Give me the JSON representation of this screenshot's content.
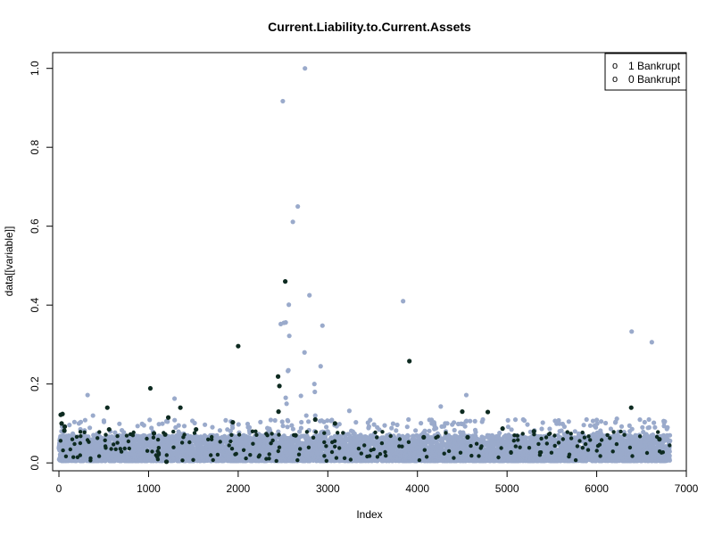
{
  "chart_data": {
    "type": "scatter",
    "title": "Current.Liability.to.Current.Assets",
    "xlabel": "Index",
    "ylabel": "data[[variable]]",
    "xlim": [
      -70,
      7000
    ],
    "ylim": [
      -0.02,
      1.04
    ],
    "x_ticks": [
      0,
      1000,
      2000,
      3000,
      4000,
      5000,
      6000,
      7000
    ],
    "x_tick_labels": [
      "0",
      "1000",
      "2000",
      "3000",
      "4000",
      "5000",
      "6000",
      "7000"
    ],
    "y_ticks": [
      0.0,
      0.2,
      0.4,
      0.6,
      0.8,
      1.0
    ],
    "y_tick_labels": [
      "0.0",
      "0.2",
      "0.4",
      "0.6",
      "0.8",
      "1.0"
    ],
    "legend": {
      "placement": "top-right",
      "entries": [
        {
          "symbol": "o",
          "label": "1 Bankrupt"
        },
        {
          "symbol": "o",
          "label": "0 Bankrupt"
        }
      ]
    },
    "colors": {
      "bankrupt_0": "#9aaacb",
      "bankrupt_1": "#0d2a20",
      "axis": "#000000"
    },
    "n_points": 6819,
    "bulk_band": {
      "description": "dense band of non-bankrupt points",
      "y_range": [
        0.005,
        0.07
      ]
    },
    "series": [
      {
        "name": "0 Bankrupt",
        "color": "#9aaacb",
        "notable_points": [
          [
            2745,
            1.0
          ],
          [
            2498,
            0.917
          ],
          [
            2665,
            0.65
          ],
          [
            2610,
            0.611
          ],
          [
            2795,
            0.425
          ],
          [
            2565,
            0.401
          ],
          [
            3840,
            0.41
          ],
          [
            2510,
            0.355
          ],
          [
            2530,
            0.356
          ],
          [
            2940,
            0.348
          ],
          [
            2475,
            0.352
          ],
          [
            2570,
            0.322
          ],
          [
            6390,
            0.333
          ],
          [
            6615,
            0.306
          ],
          [
            2740,
            0.28
          ],
          [
            2920,
            0.245
          ],
          [
            2560,
            0.235
          ],
          [
            2555,
            0.233
          ],
          [
            2850,
            0.2
          ],
          [
            2855,
            0.18
          ],
          [
            2700,
            0.17
          ],
          [
            2530,
            0.165
          ],
          [
            2540,
            0.15
          ],
          [
            2760,
            0.12
          ],
          [
            2860,
            0.12
          ],
          [
            320,
            0.172
          ],
          [
            4545,
            0.172
          ],
          [
            1290,
            0.163
          ],
          [
            4260,
            0.143
          ],
          [
            3240,
            0.132
          ],
          [
            380,
            0.12
          ],
          [
            5010,
            0.108
          ],
          [
            6050,
            0.105
          ],
          [
            6225,
            0.112
          ],
          [
            6760,
            0.105
          ],
          [
            5180,
            0.11
          ],
          [
            4730,
            0.11
          ],
          [
            3900,
            0.11
          ],
          [
            4160,
            0.1
          ],
          [
            5990,
            0.09
          ],
          [
            6650,
            0.09
          ],
          [
            6790,
            0.09
          ]
        ]
      },
      {
        "name": "1 Bankrupt",
        "color": "#0d2a20",
        "notable_points": [
          [
            2525,
            0.46
          ],
          [
            2000,
            0.296
          ],
          [
            3910,
            0.258
          ],
          [
            2445,
            0.219
          ],
          [
            1020,
            0.189
          ],
          [
            2460,
            0.195
          ],
          [
            1355,
            0.14
          ],
          [
            540,
            0.14
          ],
          [
            6385,
            0.14
          ],
          [
            20,
            0.122
          ],
          [
            40,
            0.124
          ],
          [
            2450,
            0.13
          ],
          [
            4785,
            0.129
          ],
          [
            1220,
            0.115
          ],
          [
            2860,
            0.11
          ],
          [
            5300,
            0.08
          ],
          [
            4560,
            0.065
          ],
          [
            3080,
            0.1
          ],
          [
            4950,
            0.087
          ],
          [
            65,
            0.092
          ],
          [
            30,
            0.1
          ],
          [
            6700,
            0.06
          ],
          [
            1530,
            0.085
          ],
          [
            4500,
            0.13
          ],
          [
            1060,
            0.075
          ],
          [
            1185,
            0.072
          ],
          [
            1940,
            0.103
          ],
          [
            1200,
            0.003
          ],
          [
            60,
            0.082
          ],
          [
            2640,
            0.07
          ],
          [
            560,
            0.085
          ],
          [
            4070,
            0.065
          ]
        ]
      }
    ]
  }
}
